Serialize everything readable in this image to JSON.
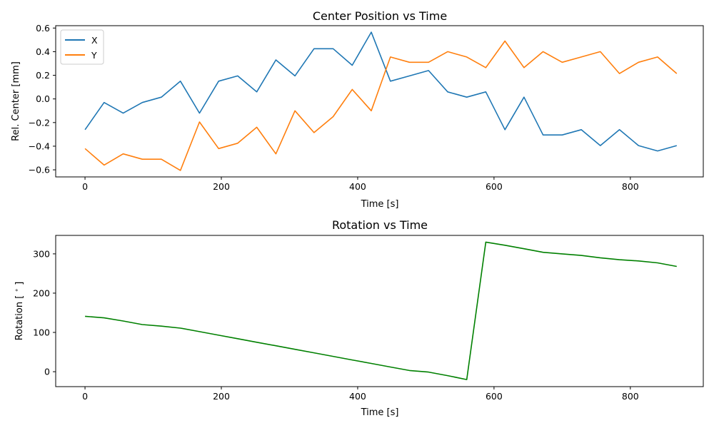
{
  "chart_data": [
    {
      "type": "line",
      "title": "Center Position vs Time",
      "xlabel": "Time [s]",
      "ylabel": "Rel. Center [mm]",
      "xlim": [
        -43,
        907
      ],
      "ylim": [
        -0.66,
        0.62
      ],
      "xticks": [
        0,
        200,
        400,
        600,
        800
      ],
      "yticks": [
        -0.6,
        -0.4,
        -0.2,
        0.0,
        0.2,
        0.4,
        0.6
      ],
      "xtick_labels": [
        "0",
        "200",
        "400",
        "600",
        "800"
      ],
      "ytick_labels": [
        "−0.6",
        "−0.4",
        "−0.2",
        "0.0",
        "0.2",
        "0.4",
        "0.6"
      ],
      "legend_position": "upper-left",
      "grid": false,
      "x": [
        0,
        28,
        56,
        84,
        112,
        140,
        168,
        196,
        224,
        252,
        280,
        308,
        336,
        364,
        392,
        420,
        448,
        476,
        504,
        532,
        560,
        588,
        616,
        644,
        672,
        700,
        728,
        756,
        784,
        812,
        840,
        868
      ],
      "series": [
        {
          "name": "X",
          "color": "#1f77b4",
          "values": [
            -0.26,
            -0.03,
            -0.12,
            -0.03,
            0.015,
            0.15,
            -0.12,
            0.15,
            0.195,
            0.06,
            0.33,
            0.195,
            0.425,
            0.425,
            0.285,
            0.565,
            0.15,
            0.195,
            0.24,
            0.06,
            0.015,
            0.06,
            -0.26,
            0.015,
            -0.305,
            -0.305,
            -0.26,
            -0.395,
            -0.26,
            -0.395,
            -0.44,
            -0.395
          ]
        },
        {
          "name": "Y",
          "color": "#ff7f0e",
          "values": [
            -0.42,
            -0.56,
            -0.465,
            -0.51,
            -0.51,
            -0.605,
            -0.195,
            -0.42,
            -0.375,
            -0.24,
            -0.465,
            -0.1,
            -0.285,
            -0.15,
            0.08,
            -0.1,
            0.355,
            0.31,
            0.31,
            0.4,
            0.355,
            0.265,
            0.49,
            0.265,
            0.4,
            0.31,
            0.355,
            0.4,
            0.215,
            0.31,
            0.355,
            0.215
          ]
        }
      ]
    },
    {
      "type": "line",
      "title": "Rotation vs Time",
      "xlabel": "Time [s]",
      "ylabel": "Rotation [$^\\circ$]",
      "xlim": [
        -43,
        907
      ],
      "ylim": [
        -38,
        347
      ],
      "xticks": [
        0,
        200,
        400,
        600,
        800
      ],
      "yticks": [
        0,
        100,
        200,
        300
      ],
      "xtick_labels": [
        "0",
        "200",
        "400",
        "600",
        "800"
      ],
      "ytick_labels": [
        "0",
        "100",
        "200",
        "300"
      ],
      "grid": false,
      "x": [
        0,
        28,
        56,
        84,
        112,
        140,
        168,
        196,
        224,
        252,
        280,
        308,
        336,
        364,
        392,
        420,
        448,
        476,
        504,
        532,
        560,
        588,
        616,
        644,
        672,
        700,
        728,
        756,
        784,
        812,
        840,
        868
      ],
      "series": [
        {
          "color": "#008000",
          "values": [
            141,
            137,
            129,
            120,
            116,
            111,
            102,
            93,
            84,
            75,
            66,
            57,
            48,
            39,
            30,
            21,
            12,
            3,
            -1,
            -10,
            -20,
            330,
            322,
            313,
            304,
            300,
            296,
            290,
            285,
            282,
            277,
            268
          ]
        }
      ]
    }
  ]
}
